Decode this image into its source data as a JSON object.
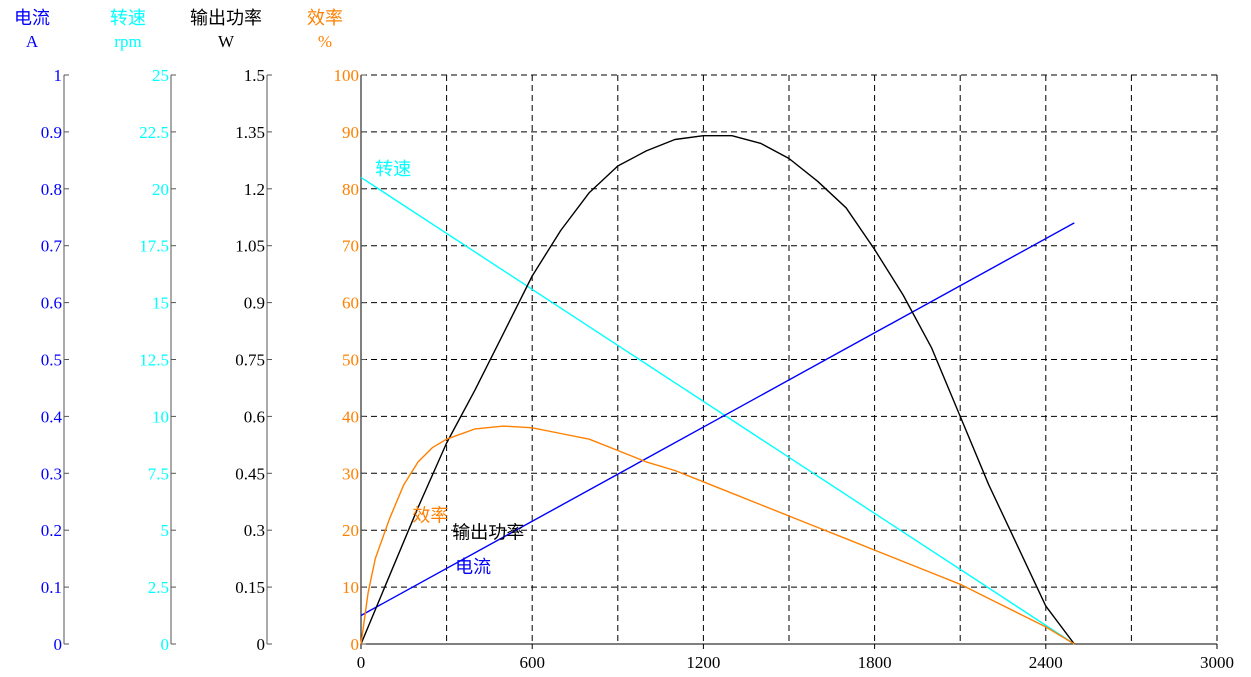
{
  "chart_data": {
    "type": "line",
    "x": {
      "ticks": [
        "0",
        "600",
        "1200",
        "1800",
        "2400",
        "3000"
      ],
      "min": 0,
      "max": 3000,
      "grid_step": 300,
      "xlabel": ""
    },
    "axes": [
      {
        "key": "current",
        "name": "电流",
        "unit": "A",
        "color": "#0000ff",
        "min": 0,
        "max": 1,
        "ticks": [
          "0",
          "0.1",
          "0.2",
          "0.3",
          "0.4",
          "0.5",
          "0.6",
          "0.7",
          "0.8",
          "0.9",
          "1"
        ]
      },
      {
        "key": "speed",
        "name": "转速",
        "unit": "rpm",
        "color": "#00ffff",
        "min": 0,
        "max": 25,
        "ticks": [
          "0",
          "2.5",
          "5",
          "7.5",
          "10",
          "12.5",
          "15",
          "17.5",
          "20",
          "22.5",
          "25"
        ]
      },
      {
        "key": "power",
        "name": "输出功率",
        "unit": "W",
        "color": "#000000",
        "min": 0,
        "max": 1.5,
        "ticks": [
          "0",
          "0.15",
          "0.3",
          "0.45",
          "0.6",
          "0.75",
          "0.9",
          "1.05",
          "1.2",
          "1.35",
          "1.5"
        ]
      },
      {
        "key": "efficiency",
        "name": "效率",
        "unit": "%",
        "color": "#ff8000",
        "min": 0,
        "max": 100,
        "ticks": [
          "0",
          "10",
          "20",
          "30",
          "40",
          "50",
          "60",
          "70",
          "80",
          "90",
          "100"
        ]
      }
    ],
    "series": [
      {
        "name": "转速",
        "axis": "speed",
        "color": "#00ffff",
        "points": [
          [
            0,
            20.5
          ],
          [
            2500,
            0
          ]
        ]
      },
      {
        "name": "电流",
        "axis": "current",
        "color": "#0000ff",
        "points": [
          [
            0,
            0.05
          ],
          [
            2500,
            0.74
          ]
        ]
      },
      {
        "name": "输出功率",
        "axis": "power",
        "color": "#000000",
        "points": [
          [
            0,
            0
          ],
          [
            100,
            0.18
          ],
          [
            200,
            0.36
          ],
          [
            300,
            0.53
          ],
          [
            400,
            0.67
          ],
          [
            500,
            0.82
          ],
          [
            600,
            0.97
          ],
          [
            700,
            1.09
          ],
          [
            800,
            1.19
          ],
          [
            900,
            1.26
          ],
          [
            1000,
            1.3
          ],
          [
            1100,
            1.33
          ],
          [
            1200,
            1.34
          ],
          [
            1300,
            1.34
          ],
          [
            1400,
            1.32
          ],
          [
            1500,
            1.28
          ],
          [
            1600,
            1.22
          ],
          [
            1700,
            1.15
          ],
          [
            1800,
            1.04
          ],
          [
            1900,
            0.92
          ],
          [
            2000,
            0.78
          ],
          [
            2100,
            0.6
          ],
          [
            2200,
            0.42
          ],
          [
            2300,
            0.26
          ],
          [
            2400,
            0.1
          ],
          [
            2500,
            0
          ]
        ]
      },
      {
        "name": "效率",
        "axis": "efficiency",
        "color": "#ff8000",
        "points": [
          [
            0,
            0
          ],
          [
            25,
            9
          ],
          [
            50,
            15
          ],
          [
            100,
            22
          ],
          [
            150,
            28
          ],
          [
            200,
            32
          ],
          [
            250,
            34.5
          ],
          [
            300,
            36
          ],
          [
            400,
            37.8
          ],
          [
            500,
            38.3
          ],
          [
            600,
            38
          ],
          [
            700,
            37
          ],
          [
            800,
            36
          ],
          [
            900,
            34
          ],
          [
            1000,
            32
          ],
          [
            1100,
            30.5
          ],
          [
            1200,
            28.5
          ],
          [
            1300,
            26.5
          ],
          [
            1400,
            24.5
          ],
          [
            1500,
            22.5
          ],
          [
            1600,
            20.5
          ],
          [
            1700,
            18.5
          ],
          [
            1800,
            16.5
          ],
          [
            1900,
            14.5
          ],
          [
            2000,
            12.5
          ],
          [
            2100,
            10.5
          ],
          [
            2200,
            8
          ],
          [
            2300,
            5.5
          ],
          [
            2400,
            3
          ],
          [
            2500,
            0
          ]
        ]
      }
    ],
    "series_labels": [
      {
        "text": "转速",
        "color": "#00ffff",
        "x": 50,
        "y_axis": "speed",
        "y": 20.6
      },
      {
        "text": "效率",
        "color": "#ff8000",
        "x": 180,
        "y_axis": "efficiency",
        "y": 21.5
      },
      {
        "text": "输出功率",
        "color": "#000000",
        "x": 320,
        "y_axis": "efficiency",
        "y": 18.5
      },
      {
        "text": "电流",
        "color": "#0000ff",
        "x": 330,
        "y_axis": "efficiency",
        "y": 12.5
      }
    ],
    "grid": true,
    "grid_style": "dashed"
  }
}
